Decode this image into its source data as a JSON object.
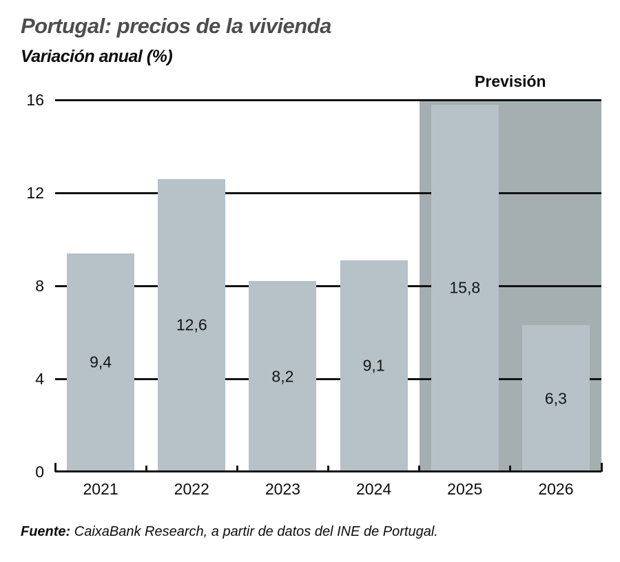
{
  "header": {
    "title": "Portugal: precios de la vivienda",
    "subtitle": "Variación anual (%)"
  },
  "chart_data": {
    "type": "bar",
    "title": "Portugal: precios de la vivienda",
    "subtitle": "Variación anual (%)",
    "categories": [
      "2021",
      "2022",
      "2023",
      "2024",
      "2025",
      "2026"
    ],
    "values": [
      9.4,
      12.6,
      8.2,
      9.1,
      15.8,
      6.3
    ],
    "value_labels": [
      "9,4",
      "12,6",
      "8,2",
      "9,1",
      "15,8",
      "6,3"
    ],
    "ylim": [
      0,
      16
    ],
    "yticks": [
      0,
      4,
      8,
      12,
      16
    ],
    "grid": "horizontal",
    "legend": "none",
    "forecast": {
      "label": "Previsión",
      "categories": [
        "2025",
        "2026"
      ],
      "start_category": "2025"
    },
    "colors": {
      "bar": "#b6c1c8",
      "forecast_region": "#a5aeb1",
      "axis": "#121212",
      "title": "#4d4d4f"
    }
  },
  "footer": {
    "source_label": "Fuente:",
    "source_text": " CaixaBank Research, a partir de datos del INE de Portugal."
  }
}
